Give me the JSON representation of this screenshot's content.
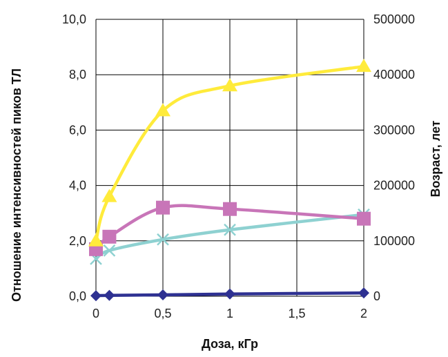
{
  "chart_data": {
    "type": "line",
    "title": "",
    "xlabel": "Доза, кГр",
    "ylabel": "Отношение интенсивностей пиков ТЛ",
    "y2label": "Возраст, лет",
    "xlim": [
      0,
      2
    ],
    "ylim": [
      0,
      10
    ],
    "y2lim": [
      0,
      500000
    ],
    "x_ticks": [
      "0",
      "0,5",
      "1",
      "1,5",
      "2"
    ],
    "x_tick_values": [
      0,
      0.5,
      1,
      1.5,
      2
    ],
    "y_ticks": [
      "0,0",
      "2,0",
      "4,0",
      "6,0",
      "8,0",
      "10,0"
    ],
    "y_tick_values": [
      0,
      2,
      4,
      6,
      8,
      10
    ],
    "y2_ticks": [
      "0",
      "100000",
      "200000",
      "300000",
      "400000",
      "500000"
    ],
    "y2_tick_values": [
      0,
      100000,
      200000,
      300000,
      400000,
      500000
    ],
    "grid": true,
    "legend": "none",
    "series": [
      {
        "color": "#2e3192",
        "marker": "diamond",
        "axis": "left",
        "x": [
          0,
          0.1,
          0.5,
          1,
          2
        ],
        "y": [
          0.02,
          0.03,
          0.05,
          0.08,
          0.12
        ]
      },
      {
        "color": "#ffeb3b",
        "marker": "triangle",
        "axis": "left",
        "x": [
          0,
          0.1,
          0.5,
          1,
          2
        ],
        "y": [
          2.0,
          3.6,
          6.7,
          7.6,
          8.3
        ]
      },
      {
        "color": "#c875b8",
        "marker": "square",
        "axis": "left",
        "x": [
          0,
          0.1,
          0.5,
          1,
          2
        ],
        "y": [
          1.7,
          2.15,
          3.2,
          3.15,
          2.8
        ]
      },
      {
        "color": "#8ed1d1",
        "marker": "x",
        "axis": "left",
        "x": [
          0,
          0.1,
          0.5,
          1,
          2
        ],
        "y": [
          1.35,
          1.65,
          2.05,
          2.4,
          2.95
        ]
      }
    ]
  }
}
